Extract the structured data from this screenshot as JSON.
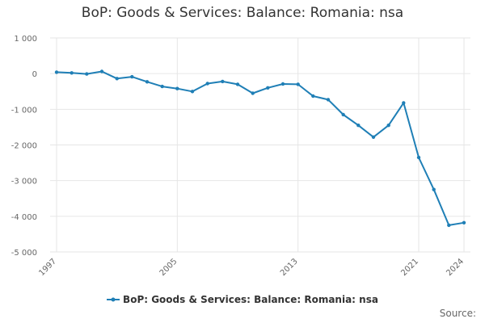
{
  "chart_data": {
    "type": "line",
    "title": "BoP: Goods & Services: Balance: Romania: nsa",
    "xlabel": "",
    "ylabel": "",
    "x": [
      1997,
      1998,
      1999,
      2000,
      2001,
      2002,
      2003,
      2004,
      2005,
      2006,
      2007,
      2008,
      2009,
      2010,
      2011,
      2012,
      2013,
      2014,
      2015,
      2016,
      2017,
      2018,
      2019,
      2020,
      2021,
      2022,
      2023,
      2024
    ],
    "series": [
      {
        "name": "BoP: Goods & Services: Balance: Romania: nsa",
        "color": "#1f7fb6",
        "values": [
          40,
          20,
          -10,
          60,
          -140,
          -90,
          -230,
          -360,
          -420,
          -500,
          -280,
          -220,
          -300,
          -550,
          -400,
          -290,
          -300,
          -630,
          -730,
          -1150,
          -1450,
          -1780,
          -1450,
          -820,
          -2350,
          -3250,
          -4250,
          -4180
        ]
      }
    ],
    "ylim": [
      -5000,
      1000
    ],
    "y_ticks": [
      {
        "value": 1000,
        "label": "1 000"
      },
      {
        "value": 0,
        "label": "0"
      },
      {
        "value": -1000,
        "label": "-1 000"
      },
      {
        "value": -2000,
        "label": "-2 000"
      },
      {
        "value": -3000,
        "label": "-3 000"
      },
      {
        "value": -4000,
        "label": "-4 000"
      },
      {
        "value": -5000,
        "label": "-5 000"
      }
    ],
    "x_ticks": [
      1997,
      2005,
      2013,
      2021,
      2024
    ],
    "grid": true,
    "legend_position": "bottom-center"
  },
  "source_label": "Source:"
}
